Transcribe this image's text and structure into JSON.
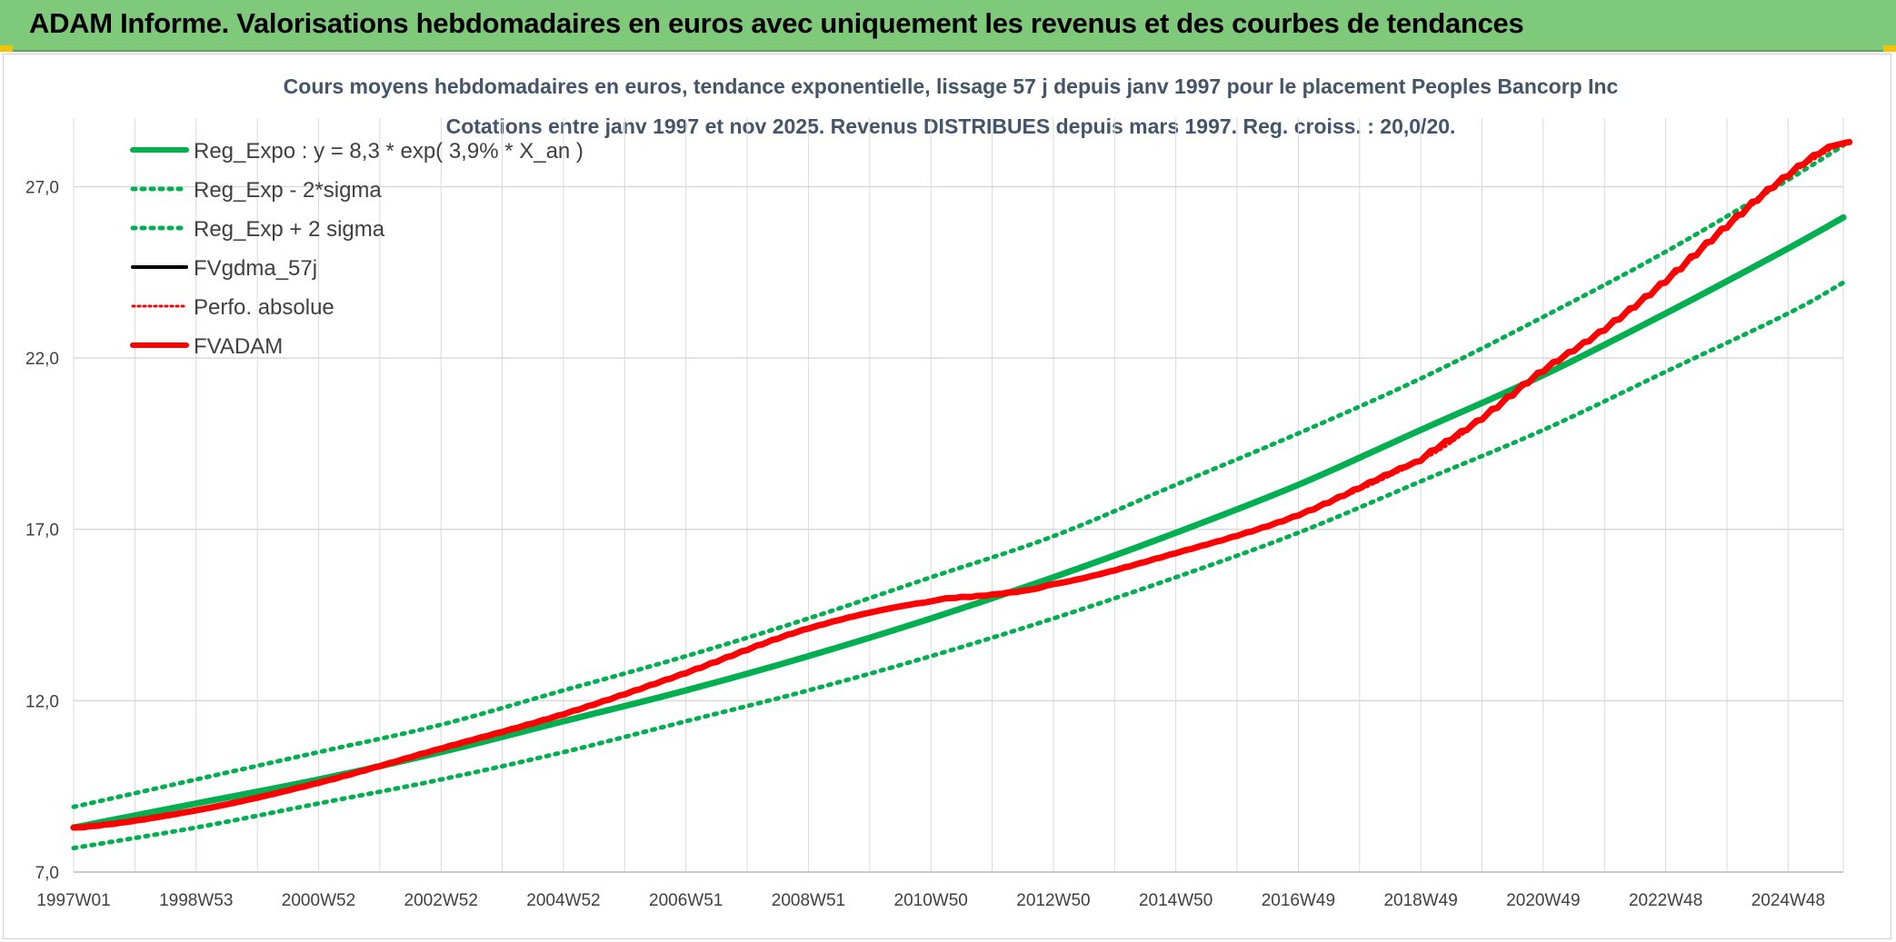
{
  "banner": {
    "title": "ADAM Informe. Valorisations hebdomadaires en euros avec uniquement les revenus et des courbes de tendances"
  },
  "colors": {
    "banner_bg": "#7fc97a",
    "reg_green": "#00b050",
    "adam_red": "#ff0000",
    "black": "#000000",
    "grid": "#d9d9d9",
    "title_text": "#44546a"
  },
  "chart_data": {
    "type": "line",
    "title": "Cours moyens hebdomadaires en euros, tendance exponentielle, lissage 57 j depuis janv 1997 pour le placement Peoples Bancorp Inc",
    "subtitle": "Cotations entre janv 1997 et nov 2025. Revenus DISTRIBUES depuis mars 1997. Reg. croiss. : 20,0/20.",
    "xlabel": "",
    "ylabel": "",
    "xlim": [
      1997.0,
      2025.9
    ],
    "ylim": [
      7.0,
      29.0
    ],
    "yticks": [
      7.0,
      12.0,
      17.0,
      22.0,
      27.0
    ],
    "ytick_labels": [
      "7,0",
      "12,0",
      "17,0",
      "22,0",
      "27,0"
    ],
    "xtick_labels": [
      "1997W01",
      "1998W53",
      "2000W52",
      "2002W52",
      "2004W52",
      "2006W51",
      "2008W51",
      "2010W50",
      "2012W50",
      "2014W50",
      "2016W49",
      "2018W49",
      "2020W49",
      "2022W48",
      "2024W48"
    ],
    "xtick_positions": [
      1997.0,
      1999.0,
      2001.0,
      2003.0,
      2005.0,
      2007.0,
      2009.0,
      2011.0,
      2013.0,
      2015.0,
      2017.0,
      2019.0,
      2021.0,
      2023.0,
      2025.0
    ],
    "legend_position": "top-left",
    "legend": [
      {
        "label": "Reg_Expo : y = 8,3 * exp( 3,9% *  X_an )",
        "style": "solid-green"
      },
      {
        "label": "Reg_Exp - 2*sigma",
        "style": "dotted-green"
      },
      {
        "label": "Reg_Exp + 2 sigma",
        "style": "dotted-green"
      },
      {
        "label": "FVgdma_57j",
        "style": "solid-black"
      },
      {
        "label": "Perfo. absolue",
        "style": "dotted-red"
      },
      {
        "label": "FVADAM",
        "style": "solid-red"
      }
    ],
    "series": [
      {
        "name": "Reg_Expo",
        "x": [
          1997,
          1999,
          2001,
          2003,
          2005,
          2007,
          2009,
          2011,
          2013,
          2015,
          2017,
          2019,
          2021,
          2023,
          2025,
          2025.9
        ],
        "values": [
          8.3,
          9.0,
          9.7,
          10.5,
          11.4,
          12.3,
          13.3,
          14.4,
          15.6,
          16.9,
          18.3,
          19.9,
          21.5,
          23.3,
          25.2,
          26.1
        ]
      },
      {
        "name": "Reg_Exp - 2*sigma",
        "x": [
          1997,
          1999,
          2001,
          2003,
          2005,
          2007,
          2009,
          2011,
          2013,
          2015,
          2017,
          2019,
          2021,
          2023,
          2025,
          2025.9
        ],
        "values": [
          7.7,
          8.3,
          9.0,
          9.7,
          10.5,
          11.4,
          12.3,
          13.3,
          14.4,
          15.6,
          16.9,
          18.4,
          19.9,
          21.6,
          23.3,
          24.2
        ]
      },
      {
        "name": "Reg_Exp + 2 sigma",
        "x": [
          1997,
          1999,
          2001,
          2003,
          2005,
          2007,
          2009,
          2011,
          2013,
          2015,
          2017,
          2019,
          2021,
          2023,
          2025,
          2025.9
        ],
        "values": [
          8.9,
          9.7,
          10.5,
          11.3,
          12.3,
          13.3,
          14.4,
          15.6,
          16.8,
          18.3,
          19.8,
          21.4,
          23.2,
          25.1,
          27.2,
          28.2
        ]
      },
      {
        "name": "Perfo. absolue",
        "x": [
          1997,
          1999,
          2001,
          2003,
          2005,
          2007,
          2009,
          2011,
          2012,
          2013,
          2015,
          2017,
          2019,
          2020,
          2021,
          2022,
          2023,
          2024,
          2025,
          2025.9
        ],
        "values": [
          8.3,
          8.8,
          9.6,
          10.6,
          11.6,
          12.8,
          14.1,
          14.9,
          15.1,
          15.4,
          16.3,
          17.4,
          19.0,
          20.2,
          21.6,
          22.8,
          24.2,
          25.8,
          27.3,
          28.3
        ]
      },
      {
        "name": "FVADAM",
        "x": [
          1997,
          1999,
          2001,
          2003,
          2005,
          2007,
          2009,
          2011,
          2012,
          2013,
          2015,
          2017,
          2019,
          2020,
          2021,
          2022,
          2023,
          2024,
          2025,
          2025.9
        ],
        "values": [
          8.3,
          8.8,
          9.6,
          10.6,
          11.6,
          12.8,
          14.1,
          14.9,
          15.1,
          15.4,
          16.3,
          17.4,
          19.0,
          20.2,
          21.6,
          22.8,
          24.2,
          25.8,
          27.3,
          28.3
        ]
      }
    ]
  }
}
